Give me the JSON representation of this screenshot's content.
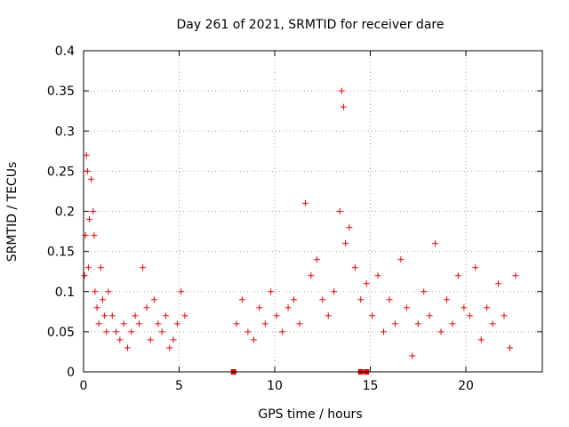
{
  "chart_data": {
    "type": "scatter",
    "title": "Day 261 of 2021, SRMTID for receiver dare",
    "xlabel": "GPS time / hours",
    "ylabel": "SRMTID / TECUs",
    "xlim": [
      0,
      24
    ],
    "ylim": [
      0,
      0.4
    ],
    "x_ticks": [
      0,
      5,
      10,
      15,
      20
    ],
    "x_tick_labels": [
      "0",
      "5",
      "10",
      "15",
      "20"
    ],
    "y_ticks": [
      0,
      0.05,
      0.1,
      0.15,
      0.2,
      0.25,
      0.3,
      0.35,
      0.4
    ],
    "y_tick_labels": [
      "0",
      "0.05",
      "0.1",
      "0.15",
      "0.2",
      "0.25",
      "0.3",
      "0.35",
      "0.4"
    ],
    "grid": true,
    "marker": "+",
    "color": "#e60000",
    "zero_markers": {
      "marker": "square",
      "x": [
        7.85,
        14.5,
        14.8
      ],
      "y": [
        0,
        0,
        0
      ]
    },
    "series": [
      {
        "name": "SRMTID",
        "x": [
          0.05,
          0.1,
          0.15,
          0.2,
          0.25,
          0.3,
          0.4,
          0.5,
          0.55,
          0.6,
          0.7,
          0.8,
          0.9,
          1.0,
          1.1,
          1.2,
          1.3,
          1.5,
          1.7,
          1.9,
          2.1,
          2.3,
          2.5,
          2.7,
          2.9,
          3.1,
          3.3,
          3.5,
          3.7,
          3.9,
          4.1,
          4.3,
          4.5,
          4.7,
          4.9,
          5.1,
          5.3,
          8.0,
          8.3,
          8.6,
          8.9,
          9.2,
          9.5,
          9.8,
          10.1,
          10.4,
          10.7,
          11.0,
          11.3,
          11.6,
          11.9,
          12.2,
          12.5,
          12.8,
          13.1,
          13.4,
          13.5,
          13.6,
          13.7,
          13.9,
          14.2,
          14.5,
          14.8,
          15.1,
          15.4,
          15.7,
          16.0,
          16.3,
          16.6,
          16.9,
          17.2,
          17.5,
          17.8,
          18.1,
          18.4,
          18.7,
          19.0,
          19.3,
          19.6,
          19.9,
          20.2,
          20.5,
          20.8,
          21.1,
          21.4,
          21.7,
          22.0,
          22.3,
          22.6
        ],
        "y": [
          0.12,
          0.17,
          0.27,
          0.25,
          0.13,
          0.19,
          0.24,
          0.2,
          0.17,
          0.1,
          0.08,
          0.06,
          0.13,
          0.09,
          0.07,
          0.05,
          0.1,
          0.07,
          0.05,
          0.04,
          0.06,
          0.03,
          0.05,
          0.07,
          0.06,
          0.13,
          0.08,
          0.04,
          0.09,
          0.06,
          0.05,
          0.07,
          0.03,
          0.04,
          0.06,
          0.1,
          0.07,
          0.06,
          0.09,
          0.05,
          0.04,
          0.08,
          0.06,
          0.1,
          0.07,
          0.05,
          0.08,
          0.09,
          0.06,
          0.21,
          0.12,
          0.14,
          0.09,
          0.07,
          0.1,
          0.2,
          0.35,
          0.33,
          0.16,
          0.18,
          0.13,
          0.09,
          0.11,
          0.07,
          0.12,
          0.05,
          0.09,
          0.06,
          0.14,
          0.08,
          0.02,
          0.06,
          0.1,
          0.07,
          0.16,
          0.05,
          0.09,
          0.06,
          0.12,
          0.08,
          0.07,
          0.13,
          0.04,
          0.08,
          0.06,
          0.11,
          0.07,
          0.03,
          0.12
        ]
      }
    ]
  }
}
